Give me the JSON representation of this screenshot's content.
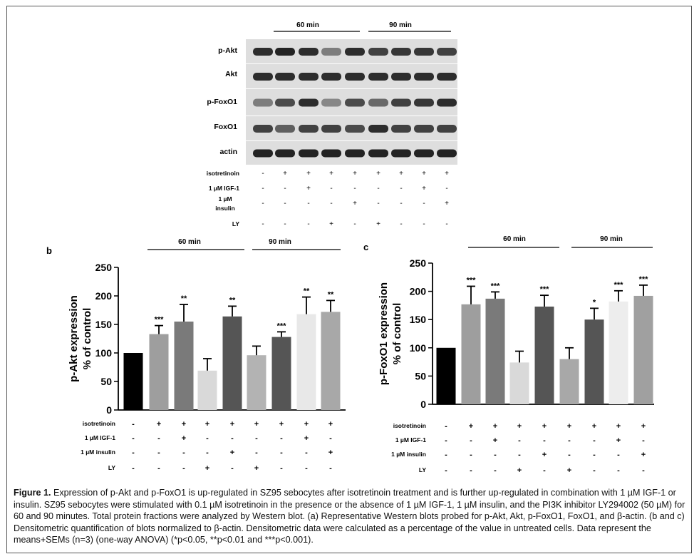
{
  "blot": {
    "panel_label": "",
    "group_60": "60 min",
    "group_90": "90 min",
    "rows": [
      {
        "label": "p-Akt",
        "intensity": [
          0.85,
          0.9,
          0.85,
          0.45,
          0.85,
          0.75,
          0.8,
          0.8,
          0.75
        ]
      },
      {
        "label": "Akt",
        "intensity": [
          0.85,
          0.85,
          0.85,
          0.85,
          0.85,
          0.85,
          0.85,
          0.85,
          0.85
        ]
      },
      {
        "label": "p-FoxO1",
        "intensity": [
          0.45,
          0.7,
          0.85,
          0.4,
          0.7,
          0.55,
          0.75,
          0.8,
          0.85
        ]
      },
      {
        "label": "FoxO1",
        "intensity": [
          0.75,
          0.6,
          0.75,
          0.75,
          0.7,
          0.85,
          0.75,
          0.75,
          0.75
        ]
      },
      {
        "label": "actin",
        "intensity": [
          0.9,
          0.9,
          0.9,
          0.9,
          0.9,
          0.9,
          0.9,
          0.9,
          0.9
        ]
      }
    ],
    "conditions": [
      {
        "label": "isotretinoin",
        "marks": [
          "-",
          "+",
          "+",
          "+",
          "+",
          "+",
          "+",
          "+",
          "+"
        ]
      },
      {
        "label": "1 µM IGF-1",
        "marks": [
          "-",
          "-",
          "+",
          "-",
          "-",
          "-",
          "-",
          "+",
          "-"
        ]
      },
      {
        "label": "1 µM insulin",
        "marks": [
          "-",
          "-",
          "-",
          "-",
          "+",
          "-",
          "-",
          "-",
          "+"
        ]
      },
      {
        "label": "LY",
        "marks": [
          "-",
          "-",
          "-",
          "+",
          "-",
          "+",
          "-",
          "-",
          "-"
        ]
      }
    ]
  },
  "chart_data": [
    {
      "panel": "b",
      "type": "bar",
      "ylabel_line1": "p-Akt expression",
      "ylabel_line2": "% of control",
      "ylim": [
        0,
        250
      ],
      "yticks": [
        0,
        50,
        100,
        150,
        200,
        250
      ],
      "group_60": "60 min",
      "group_90": "90 min",
      "values": [
        100,
        133,
        155,
        69,
        164,
        96,
        128,
        168,
        172
      ],
      "errors": [
        0,
        15,
        30,
        21,
        18,
        16,
        9,
        30,
        20
      ],
      "colors": [
        "#000000",
        "#9e9e9e",
        "#7a7a7a",
        "#d9d9d9",
        "#555555",
        "#b3b3b3",
        "#555555",
        "#e8e8e8",
        "#a8a8a8"
      ],
      "significance": [
        "",
        "***",
        "**",
        "",
        "**",
        "",
        "***",
        "**",
        "**"
      ],
      "conditions": [
        {
          "label": "isotretinoin",
          "marks": [
            "-",
            "+",
            "+",
            "+",
            "+",
            "+",
            "+",
            "+",
            "+"
          ]
        },
        {
          "label": "1 µM IGF-1",
          "marks": [
            "-",
            "-",
            "+",
            "-",
            "-",
            "-",
            "-",
            "+",
            "-"
          ]
        },
        {
          "label": "1 µM insulin",
          "marks": [
            "-",
            "-",
            "-",
            "-",
            "+",
            "-",
            "-",
            "-",
            "+"
          ]
        },
        {
          "label": "LY",
          "marks": [
            "-",
            "-",
            "-",
            "+",
            "-",
            "+",
            "-",
            "-",
            "-"
          ]
        }
      ]
    },
    {
      "panel": "c",
      "type": "bar",
      "ylabel_line1": "p-FoxO1 expression",
      "ylabel_line2": "% of control",
      "ylim": [
        0,
        250
      ],
      "yticks": [
        0,
        50,
        100,
        150,
        200,
        250
      ],
      "group_60": "60 min",
      "group_90": "90 min",
      "values": [
        100,
        177,
        187,
        74,
        173,
        80,
        150,
        182,
        192
      ],
      "errors": [
        0,
        32,
        12,
        20,
        20,
        20,
        20,
        19,
        19
      ],
      "colors": [
        "#000000",
        "#9e9e9e",
        "#7a7a7a",
        "#d9d9d9",
        "#555555",
        "#a8a8a8",
        "#555555",
        "#ededed",
        "#a0a0a0"
      ],
      "significance": [
        "",
        "***",
        "***",
        "",
        "***",
        "",
        "*",
        "***",
        "***"
      ],
      "conditions": [
        {
          "label": "isotretinoin",
          "marks": [
            "-",
            "+",
            "+",
            "+",
            "+",
            "+",
            "+",
            "+",
            "+"
          ]
        },
        {
          "label": "1 µM IGF-1",
          "marks": [
            "-",
            "-",
            "+",
            "-",
            "-",
            "-",
            "-",
            "+",
            "-"
          ]
        },
        {
          "label": "1 µM insulin",
          "marks": [
            "-",
            "-",
            "-",
            "-",
            "+",
            "-",
            "-",
            "-",
            "+"
          ]
        },
        {
          "label": "LY",
          "marks": [
            "-",
            "-",
            "-",
            "+",
            "-",
            "+",
            "-",
            "-",
            "-"
          ]
        }
      ]
    }
  ],
  "caption": {
    "label": "Figure 1.",
    "text": "Expression of p-Akt and p-FoxO1 is up-regulated in SZ95 sebocytes after isotretinoin treatment and is further up-regulated in combination with 1 µM IGF-1 or insulin. SZ95 sebocytes were stimulated with 0.1 µM isotretinoin in the presence or the absence of 1 µM IGF-1, 1 µM insulin, and the PI3K inhibitor LY294002 (50 µM) for 60 and 90 minutes. Total protein fractions were analyzed by Western blot. (a) Representative Western blots probed for p-Akt, Akt, p-FoxO1, FoxO1, and β-actin. (b and c) Densitometric quantification of blots normalized to β-actin. Densitometric data were calculated as a percentage of the value in untreated cells. Data represent the means+SEMs (n=3) (one-way ANOVA) (*p<0.05, **p<0.01 and ***p<0.001)."
  }
}
